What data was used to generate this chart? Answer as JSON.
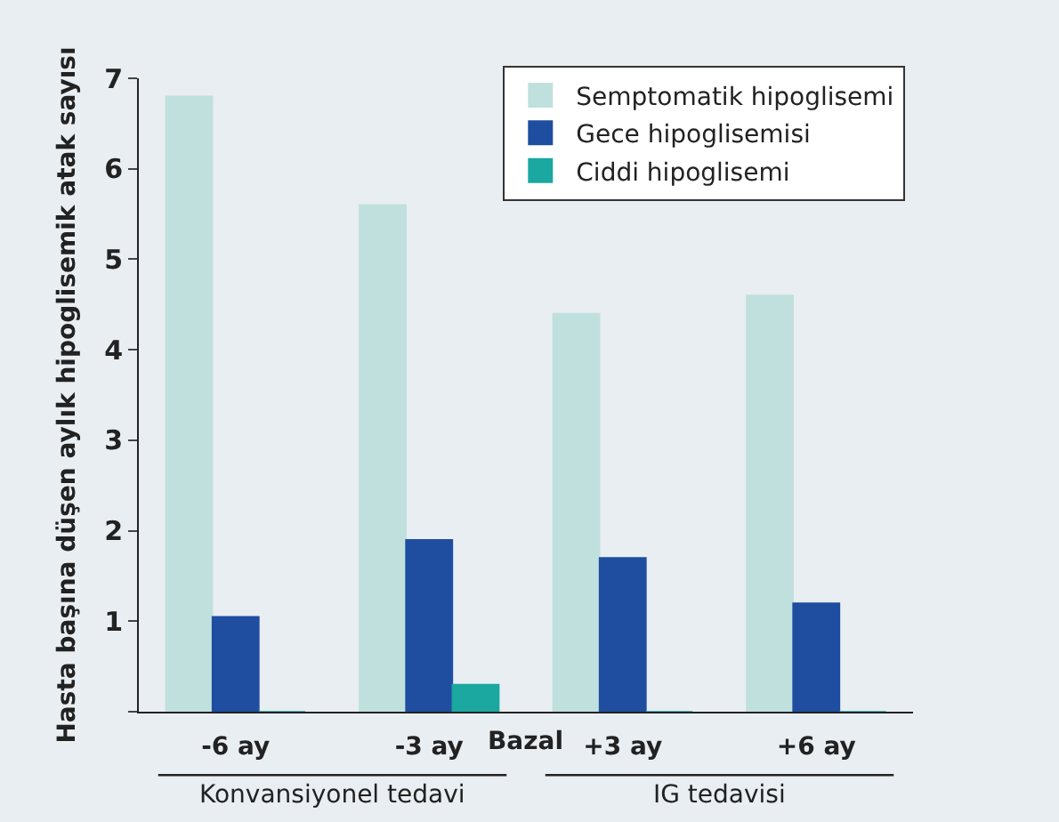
{
  "chart_data": {
    "type": "bar",
    "ylabel": "Hasta başına düşen aylık hipoglisemik atak sayısı",
    "categories": [
      "-6 ay",
      "-3 ay",
      "+3 ay",
      "+6 ay"
    ],
    "series": [
      {
        "name": "Semptomatik hipoglisemi",
        "color": "#c0e0de",
        "values": [
          6.8,
          5.6,
          4.4,
          4.6
        ]
      },
      {
        "name": "Gece hipoglisemisi",
        "color": "#1f4ea0",
        "values": [
          1.05,
          1.9,
          1.7,
          1.2
        ]
      },
      {
        "name": "Ciddi hipoglisemi",
        "color": "#1aa8a0",
        "values": [
          0,
          0.3,
          0,
          0
        ]
      }
    ],
    "ylim": [
      0,
      7
    ],
    "yticks": [
      {
        "value": 0,
        "label": null
      },
      1,
      2,
      3,
      4,
      5,
      6,
      7
    ],
    "grid": false,
    "legend": "top right",
    "annotations": [
      "Bazal",
      "Konvansiyonel tedavi",
      "IG tedavisi"
    ]
  }
}
